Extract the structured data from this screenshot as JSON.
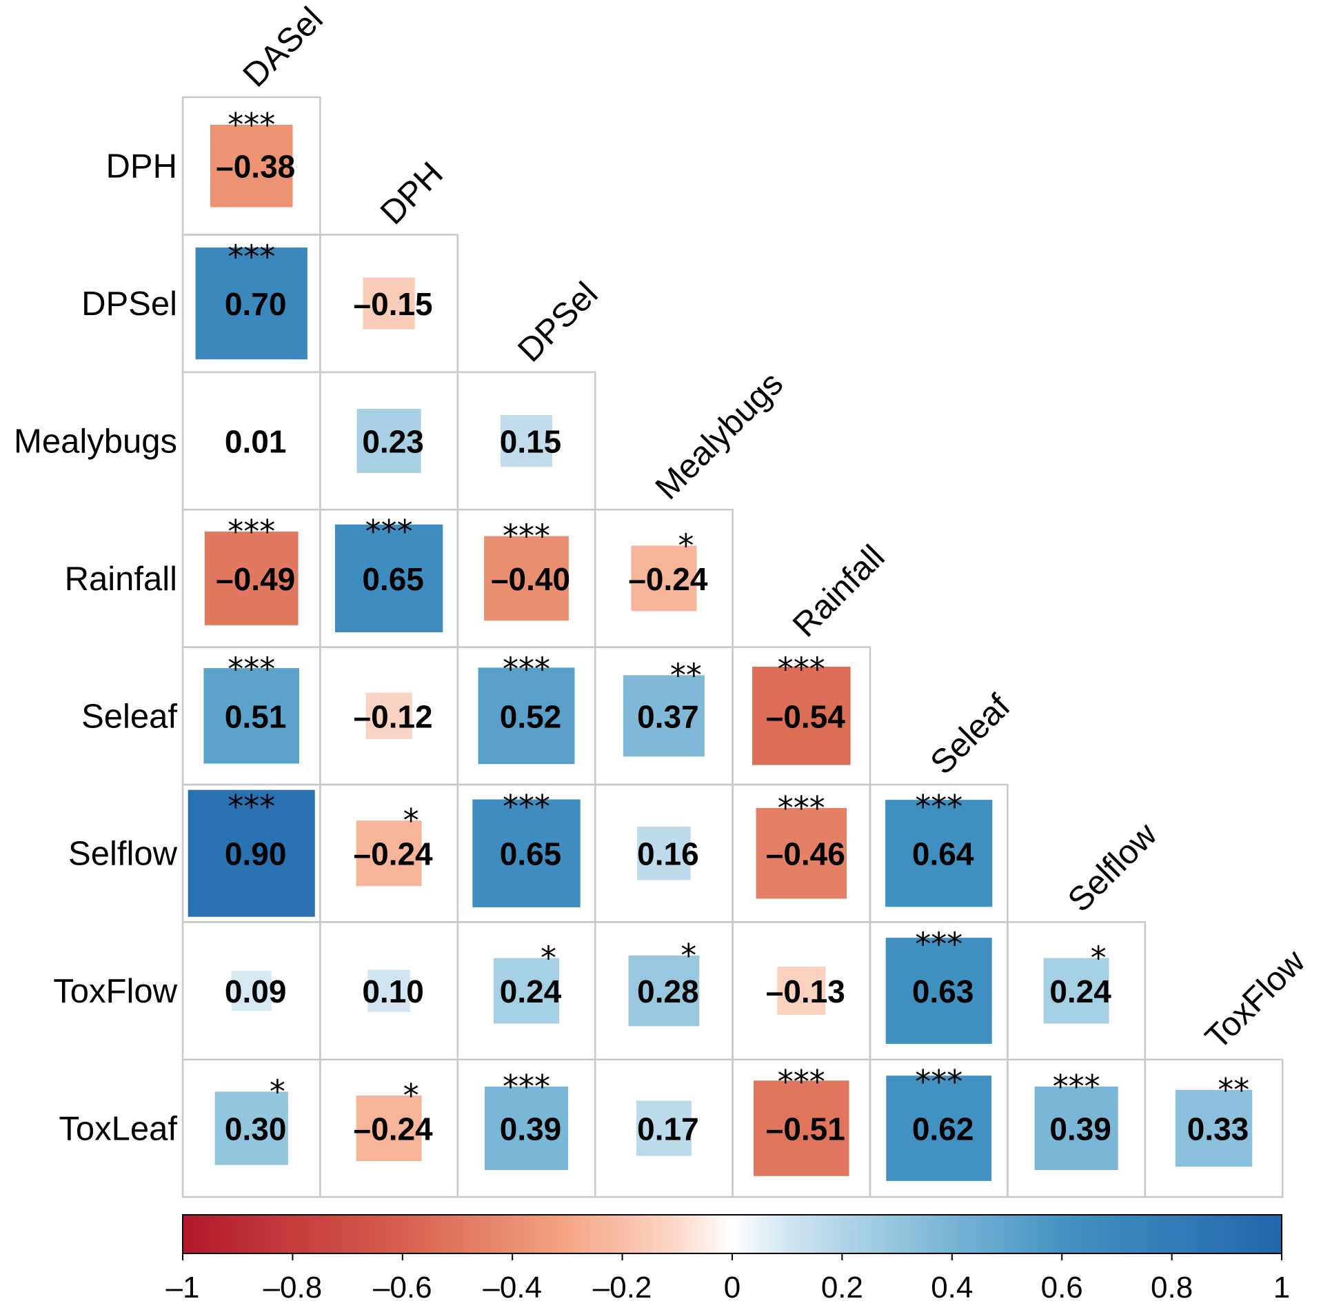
{
  "chart_data": {
    "type": "heatmap",
    "title": "",
    "variables": [
      "DASel",
      "DPH",
      "DPSel",
      "Mealybugs",
      "Rainfall",
      "Seleaf",
      "Selflow",
      "ToxFlow",
      "ToxLeaf"
    ],
    "row_labels": [
      "DPH",
      "DPSel",
      "Mealybugs",
      "Rainfall",
      "Seleaf",
      "Selflow",
      "ToxFlow",
      "ToxLeaf"
    ],
    "column_labels": [
      "DASel",
      "DPH",
      "DPSel",
      "Mealybugs",
      "Rainfall",
      "Seleaf",
      "Selflow",
      "ToxFlow"
    ],
    "cells": [
      {
        "row": "DPH",
        "col": "DASel",
        "value": -0.38,
        "label": "–0.38",
        "sig": "***"
      },
      {
        "row": "DPSel",
        "col": "DASel",
        "value": 0.7,
        "label": "0.70",
        "sig": "***"
      },
      {
        "row": "DPSel",
        "col": "DPH",
        "value": -0.15,
        "label": "–0.15",
        "sig": ""
      },
      {
        "row": "Mealybugs",
        "col": "DASel",
        "value": 0.01,
        "label": "0.01",
        "sig": ""
      },
      {
        "row": "Mealybugs",
        "col": "DPH",
        "value": 0.23,
        "label": "0.23",
        "sig": ""
      },
      {
        "row": "Mealybugs",
        "col": "DPSel",
        "value": 0.15,
        "label": "0.15",
        "sig": ""
      },
      {
        "row": "Rainfall",
        "col": "DASel",
        "value": -0.49,
        "label": "–0.49",
        "sig": "***"
      },
      {
        "row": "Rainfall",
        "col": "DPH",
        "value": 0.65,
        "label": "0.65",
        "sig": "***"
      },
      {
        "row": "Rainfall",
        "col": "DPSel",
        "value": -0.4,
        "label": "–0.40",
        "sig": "***"
      },
      {
        "row": "Rainfall",
        "col": "Mealybugs",
        "value": -0.24,
        "label": "–0.24",
        "sig": "*"
      },
      {
        "row": "Seleaf",
        "col": "DASel",
        "value": 0.51,
        "label": "0.51",
        "sig": "***"
      },
      {
        "row": "Seleaf",
        "col": "DPH",
        "value": -0.12,
        "label": "–0.12",
        "sig": ""
      },
      {
        "row": "Seleaf",
        "col": "DPSel",
        "value": 0.52,
        "label": "0.52",
        "sig": "***"
      },
      {
        "row": "Seleaf",
        "col": "Mealybugs",
        "value": 0.37,
        "label": "0.37",
        "sig": "**"
      },
      {
        "row": "Seleaf",
        "col": "Rainfall",
        "value": -0.54,
        "label": "–0.54",
        "sig": "***"
      },
      {
        "row": "Selflow",
        "col": "DASel",
        "value": 0.9,
        "label": "0.90",
        "sig": "***"
      },
      {
        "row": "Selflow",
        "col": "DPH",
        "value": -0.24,
        "label": "–0.24",
        "sig": "*"
      },
      {
        "row": "Selflow",
        "col": "DPSel",
        "value": 0.65,
        "label": "0.65",
        "sig": "***"
      },
      {
        "row": "Selflow",
        "col": "Mealybugs",
        "value": 0.16,
        "label": "0.16",
        "sig": ""
      },
      {
        "row": "Selflow",
        "col": "Rainfall",
        "value": -0.46,
        "label": "–0.46",
        "sig": "***"
      },
      {
        "row": "Selflow",
        "col": "Seleaf",
        "value": 0.64,
        "label": "0.64",
        "sig": "***"
      },
      {
        "row": "ToxFlow",
        "col": "DASel",
        "value": 0.09,
        "label": "0.09",
        "sig": ""
      },
      {
        "row": "ToxFlow",
        "col": "DPH",
        "value": 0.1,
        "label": "0.10",
        "sig": ""
      },
      {
        "row": "ToxFlow",
        "col": "DPSel",
        "value": 0.24,
        "label": "0.24",
        "sig": "*"
      },
      {
        "row": "ToxFlow",
        "col": "Mealybugs",
        "value": 0.28,
        "label": "0.28",
        "sig": "*"
      },
      {
        "row": "ToxFlow",
        "col": "Rainfall",
        "value": -0.13,
        "label": "–0.13",
        "sig": ""
      },
      {
        "row": "ToxFlow",
        "col": "Seleaf",
        "value": 0.63,
        "label": "0.63",
        "sig": "***"
      },
      {
        "row": "ToxFlow",
        "col": "Selflow",
        "value": 0.24,
        "label": "0.24",
        "sig": "*"
      },
      {
        "row": "ToxLeaf",
        "col": "DASel",
        "value": 0.3,
        "label": "0.30",
        "sig": "*"
      },
      {
        "row": "ToxLeaf",
        "col": "DPH",
        "value": -0.24,
        "label": "–0.24",
        "sig": "*"
      },
      {
        "row": "ToxLeaf",
        "col": "DPSel",
        "value": 0.39,
        "label": "0.39",
        "sig": "***"
      },
      {
        "row": "ToxLeaf",
        "col": "Mealybugs",
        "value": 0.17,
        "label": "0.17",
        "sig": ""
      },
      {
        "row": "ToxLeaf",
        "col": "Rainfall",
        "value": -0.51,
        "label": "–0.51",
        "sig": "***"
      },
      {
        "row": "ToxLeaf",
        "col": "Seleaf",
        "value": 0.62,
        "label": "0.62",
        "sig": "***"
      },
      {
        "row": "ToxLeaf",
        "col": "Selflow",
        "value": 0.39,
        "label": "0.39",
        "sig": "***"
      },
      {
        "row": "ToxLeaf",
        "col": "ToxFlow",
        "value": 0.33,
        "label": "0.33",
        "sig": "**"
      }
    ],
    "colorbar": {
      "range": [
        -1,
        1
      ],
      "ticks": [
        -1,
        -0.8,
        -0.6,
        -0.4,
        -0.2,
        0,
        0.2,
        0.4,
        0.6,
        0.8,
        1
      ],
      "tick_labels": [
        "–1",
        "–0.8",
        "–0.6",
        "–0.4",
        "–0.2",
        "0",
        "0.2",
        "0.4",
        "0.6",
        "0.8",
        "1"
      ],
      "placement": "bottom"
    },
    "colors": {
      "negative": "#b2182b",
      "neutral": "#ffffff",
      "positive": "#2166ac",
      "grid": "#c8c8c8"
    }
  }
}
